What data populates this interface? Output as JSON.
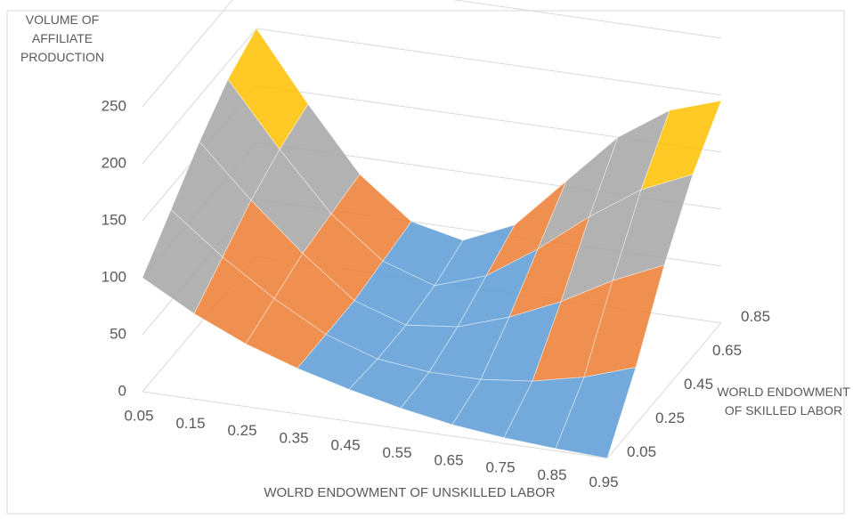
{
  "chart_data": {
    "type": "surface",
    "z_title": "VOLUME OF AFFILIATE PRODUCTION",
    "x_title": "WOLRD ENDOWMENT OF UNSKILLED LABOR",
    "depth_title": "WORLD ENDOWMENT OF SKILLED LABOR",
    "categories": [
      "0.05",
      "0.15",
      "0.25",
      "0.35",
      "0.45",
      "0.55",
      "0.65",
      "0.75",
      "0.85",
      "0.95"
    ],
    "series": [
      {
        "name": "0.05",
        "values": [
          100,
          75,
          55,
          40,
          28,
          18,
          10,
          5,
          2,
          0
        ]
      },
      {
        "name": "0.25",
        "values": [
          130,
          95,
          65,
          40,
          25,
          20,
          20,
          25,
          35,
          50
        ]
      },
      {
        "name": "0.45",
        "values": [
          160,
          115,
          75,
          40,
          25,
          30,
          45,
          65,
          90,
          110
        ]
      },
      {
        "name": "0.65",
        "values": [
          185,
          130,
          80,
          45,
          30,
          45,
          75,
          110,
          140,
          160
        ]
      },
      {
        "name": "0.85",
        "values": [
          200,
          140,
          85,
          50,
          40,
          60,
          105,
          150,
          180,
          195
        ]
      }
    ],
    "ylim": [
      0,
      250
    ],
    "yticks": [
      0,
      50,
      100,
      150,
      200,
      250
    ],
    "band_colors": [
      "#5b9bd5",
      "#ed7d31",
      "#a5a5a5",
      "#ffc000",
      "#4472c4"
    ],
    "grid": true
  }
}
